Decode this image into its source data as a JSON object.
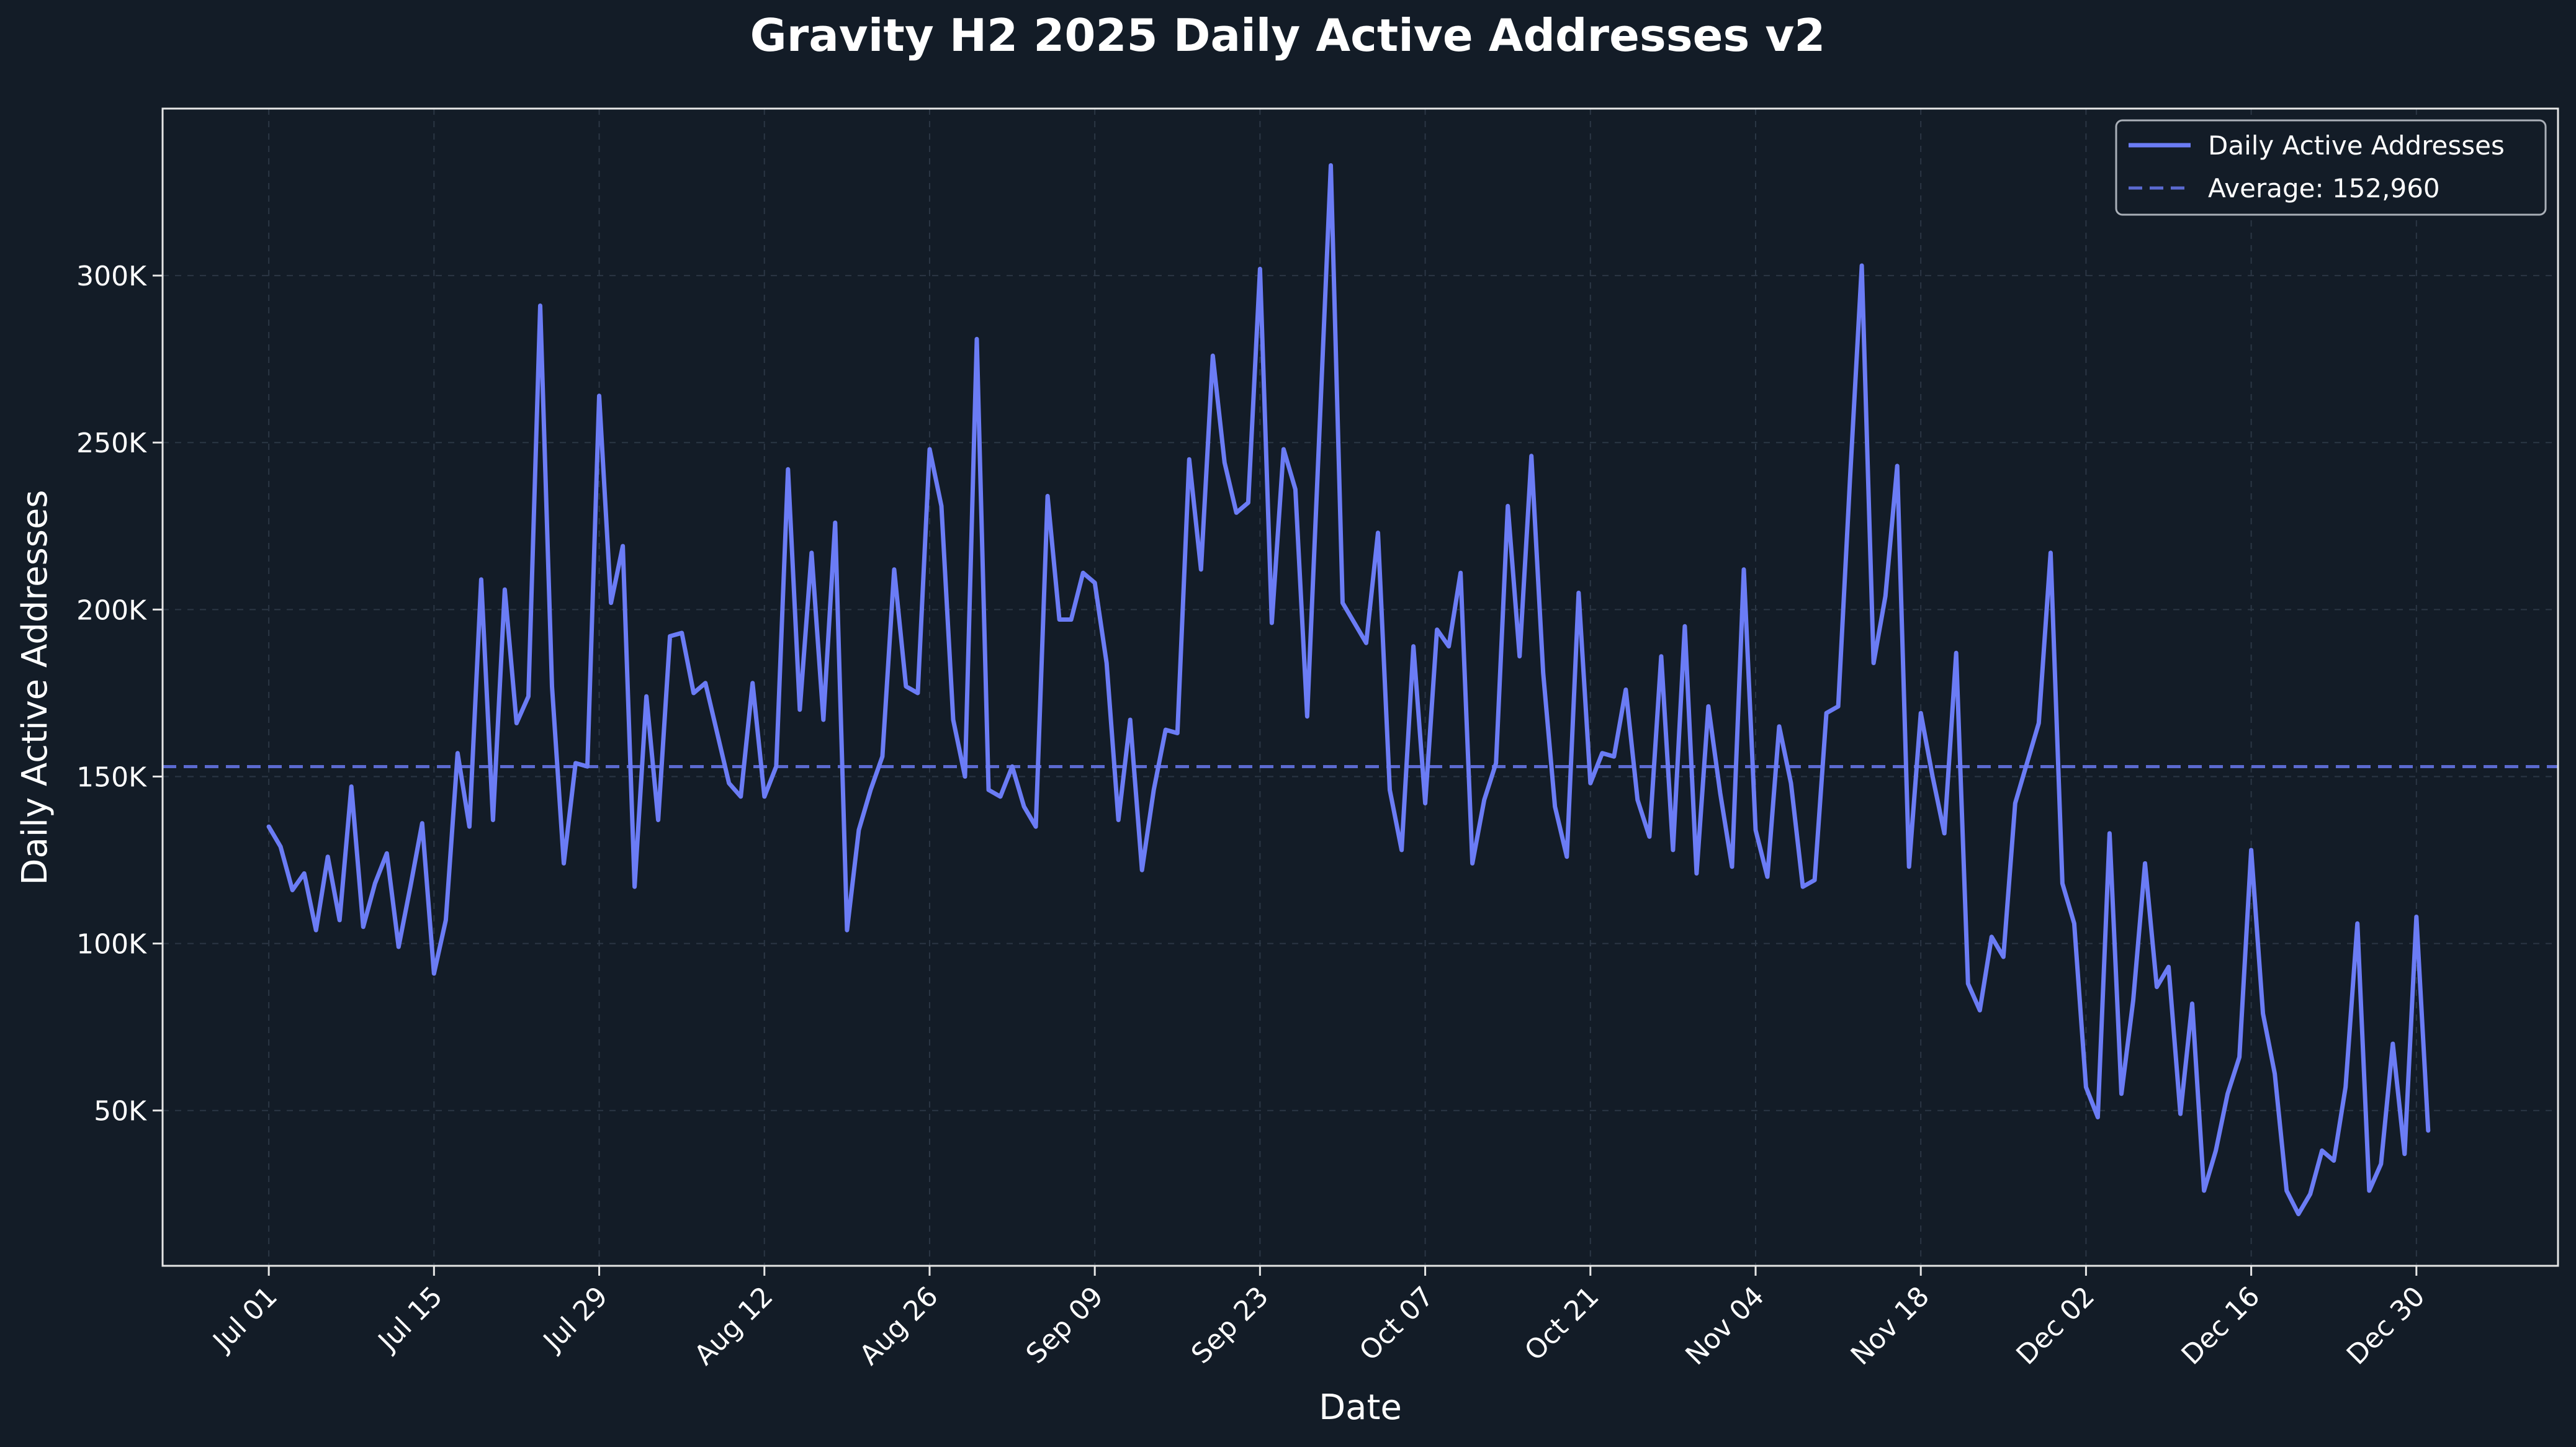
{
  "chart_data": {
    "type": "line",
    "title": "Gravity H2 2025 Daily Active Addresses v2",
    "xlabel": "Date",
    "ylabel": "Daily Active Addresses",
    "x_start": "2025-07-01",
    "x_ticks": [
      {
        "label": "Jul 01",
        "date": "2025-07-01"
      },
      {
        "label": "Jul 15",
        "date": "2025-07-15"
      },
      {
        "label": "Jul 29",
        "date": "2025-07-29"
      },
      {
        "label": "Aug 12",
        "date": "2025-08-12"
      },
      {
        "label": "Aug 26",
        "date": "2025-08-26"
      },
      {
        "label": "Sep 09",
        "date": "2025-09-09"
      },
      {
        "label": "Sep 23",
        "date": "2025-09-23"
      },
      {
        "label": "Oct 07",
        "date": "2025-10-07"
      },
      {
        "label": "Oct 21",
        "date": "2025-10-21"
      },
      {
        "label": "Nov 04",
        "date": "2025-11-04"
      },
      {
        "label": "Nov 18",
        "date": "2025-11-18"
      },
      {
        "label": "Dec 02",
        "date": "2025-12-02"
      },
      {
        "label": "Dec 16",
        "date": "2025-12-16"
      },
      {
        "label": "Dec 30",
        "date": "2025-12-30"
      }
    ],
    "xlim": [
      "2025-06-22",
      "2026-01-11"
    ],
    "y_ticks": [
      {
        "label": "50K",
        "value": 50000
      },
      {
        "label": "100K",
        "value": 100000
      },
      {
        "label": "150K",
        "value": 150000
      },
      {
        "label": "200K",
        "value": 200000
      },
      {
        "label": "250K",
        "value": 250000
      },
      {
        "label": "300K",
        "value": 300000
      }
    ],
    "ylim": [
      3500,
      350000
    ],
    "grid": true,
    "legend_position": "top-right",
    "series": [
      {
        "name": "Daily Active Addresses",
        "color": "#6b7cf5",
        "style": "solid",
        "values": [
          135000,
          129000,
          116000,
          121000,
          104000,
          126000,
          107000,
          147000,
          105000,
          118000,
          127000,
          99000,
          117000,
          136000,
          91000,
          107000,
          157000,
          135000,
          209000,
          137000,
          206000,
          166000,
          174000,
          291000,
          177000,
          124000,
          154000,
          153000,
          264000,
          202000,
          219000,
          117000,
          174000,
          137000,
          192000,
          193000,
          175000,
          178000,
          163000,
          148000,
          144000,
          178000,
          144000,
          153000,
          242000,
          170000,
          217000,
          167000,
          226000,
          104000,
          134000,
          146000,
          156000,
          212000,
          177000,
          175000,
          248000,
          231000,
          167000,
          150000,
          281000,
          146000,
          144000,
          153000,
          141000,
          135000,
          234000,
          197000,
          197000,
          211000,
          208000,
          184000,
          137000,
          167000,
          122000,
          146000,
          164000,
          163000,
          245000,
          212000,
          276000,
          244000,
          229000,
          232000,
          302000,
          196000,
          248000,
          236000,
          168000,
          250000,
          333000,
          202000,
          196000,
          190000,
          223000,
          146000,
          128000,
          189000,
          142000,
          194000,
          189000,
          211000,
          124000,
          143000,
          154000,
          231000,
          186000,
          246000,
          181000,
          141000,
          126000,
          205000,
          148000,
          157000,
          156000,
          176000,
          143000,
          132000,
          186000,
          128000,
          195000,
          121000,
          171000,
          145000,
          123000,
          212000,
          134000,
          120000,
          165000,
          148000,
          117000,
          119000,
          169000,
          171000,
          239000,
          303000,
          184000,
          204000,
          243000,
          123000,
          169000,
          150000,
          133000,
          187000,
          88000,
          80000,
          102000,
          96000,
          142000,
          154000,
          166000,
          217000,
          118000,
          106000,
          57000,
          48000,
          133000,
          55000,
          83000,
          124000,
          87000,
          93000,
          49000,
          82000,
          26000,
          38000,
          55000,
          66000,
          128000,
          79000,
          61000,
          26000,
          19000,
          25000,
          38000,
          35000,
          57000,
          106000,
          26000,
          34000,
          70000,
          37000,
          108000,
          44000
        ]
      },
      {
        "name": "Average: 152,960",
        "color": "#5b6ad0",
        "style": "dashed",
        "value": 152960
      }
    ]
  }
}
